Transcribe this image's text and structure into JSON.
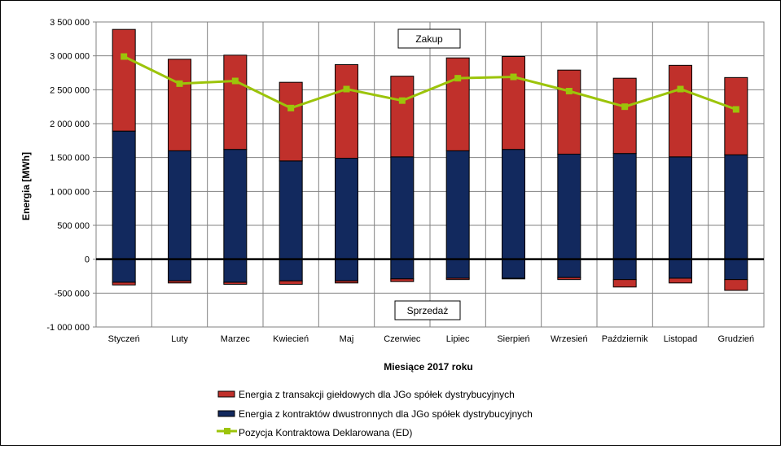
{
  "chart_data": {
    "type": "bar",
    "stacked": true,
    "xlabel": "Miesiące 2017  roku",
    "ylabel": "Energia  [MWh]",
    "ylim": [
      -1000000,
      3500000
    ],
    "yticks": [
      3500000,
      3000000,
      2500000,
      2000000,
      1500000,
      1000000,
      500000,
      0,
      -500000,
      -1000000
    ],
    "ytick_labels": [
      "3 500 000",
      "3 000 000",
      "2 500 000",
      "2 000 000",
      "1 500 000",
      "1 000 000",
      "500 000",
      "0",
      "-500 000",
      "-1 000 000"
    ],
    "grid": "both",
    "legend_position": "bottom",
    "categories": [
      "Styczeń",
      "Luty",
      "Marzec",
      "Kwiecień",
      "Maj",
      "Czerwiec",
      "Lipiec",
      "Sierpień",
      "Wrzesień",
      "Październik",
      "Listopad",
      "Grudzień"
    ],
    "series": [
      {
        "name": "Energia z transakcji giełdowych dla JGo spółek dystrybucyjnych",
        "color": "#C0302B",
        "kind": "bar",
        "values_positive": [
          1500000,
          1350000,
          1390000,
          1160000,
          1380000,
          1190000,
          1370000,
          1370000,
          1240000,
          1110000,
          1350000,
          1140000
        ],
        "values_negative": [
          -40000,
          -30000,
          -30000,
          -50000,
          -30000,
          -40000,
          -20000,
          -10000,
          -30000,
          -110000,
          -70000,
          -160000
        ]
      },
      {
        "name": "Energia z kontraktów dwustronnych dla JGo spółek dystrybucyjnych",
        "color": "#12295E",
        "kind": "bar",
        "values_positive": [
          1890000,
          1600000,
          1620000,
          1450000,
          1490000,
          1510000,
          1600000,
          1620000,
          1550000,
          1560000,
          1510000,
          1540000
        ],
        "values_negative": [
          -340000,
          -320000,
          -340000,
          -320000,
          -320000,
          -290000,
          -280000,
          -280000,
          -270000,
          -300000,
          -280000,
          -300000
        ]
      },
      {
        "name": "Pozycja Kontraktowa Deklarowana (ED)",
        "color": "#9CC40A",
        "kind": "line",
        "values": [
          2990000,
          2590000,
          2630000,
          2230000,
          2510000,
          2340000,
          2670000,
          2690000,
          2480000,
          2250000,
          2510000,
          2210000
        ]
      }
    ],
    "annotations": {
      "zakup": "Zakup",
      "sprzedaz": "Sprzedaż"
    }
  }
}
